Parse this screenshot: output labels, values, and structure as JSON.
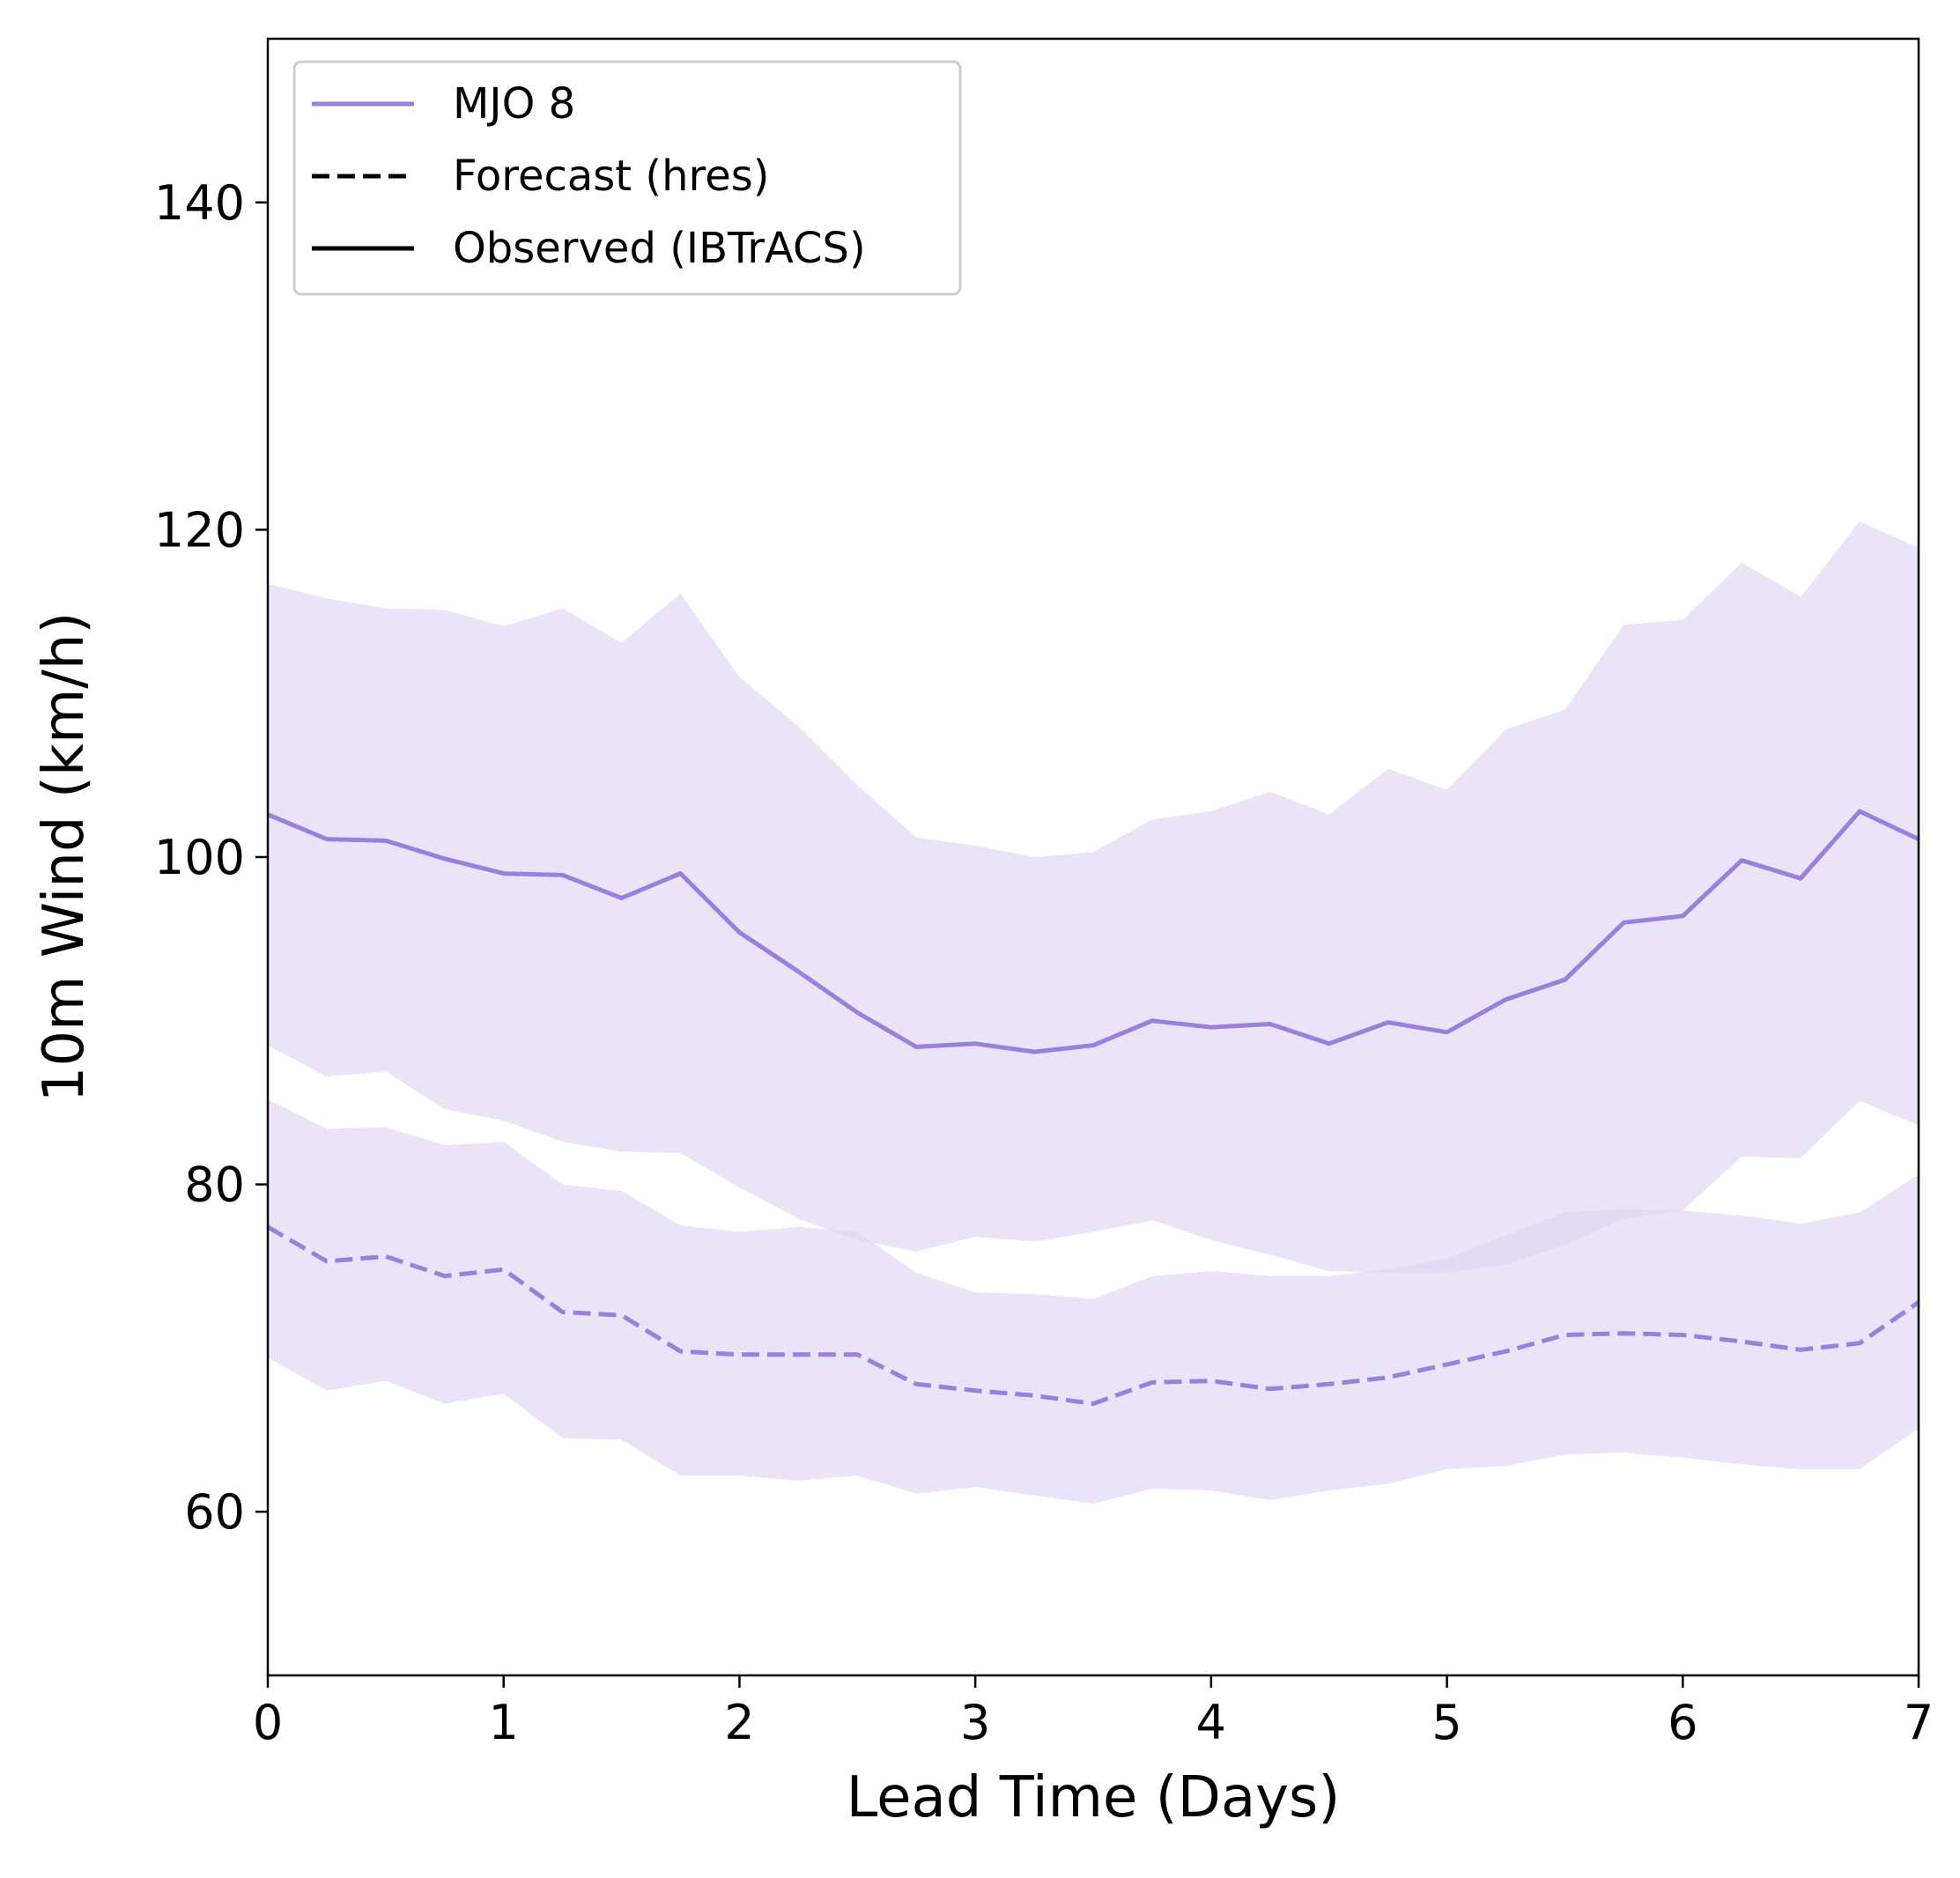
{
  "chart_data": {
    "type": "line",
    "xlabel": "Lead Time (Days)",
    "ylabel": "10m Wind (km/h)",
    "xlim": [
      0,
      7
    ],
    "ylim": [
      50,
      150
    ],
    "xticks": [
      0,
      1,
      2,
      3,
      4,
      5,
      6,
      7
    ],
    "yticks": [
      60,
      80,
      100,
      120,
      140
    ],
    "grid": false,
    "legend_position": "upper-left",
    "legend": [
      {
        "label": "MJO 8",
        "style": "solid",
        "color": "#9b7fdc"
      },
      {
        "label": "Forecast (hres)",
        "style": "dashed",
        "color": "#000000"
      },
      {
        "label": "Observed (IBTrACS)",
        "style": "solid",
        "color": "#000000"
      }
    ],
    "band_color": "#ded4f3",
    "x": [
      0,
      0.25,
      0.5,
      0.75,
      1,
      1.25,
      1.5,
      1.75,
      2,
      2.25,
      2.5,
      2.75,
      3,
      3.25,
      3.5,
      3.75,
      4,
      4.25,
      4.5,
      4.75,
      5,
      5.25,
      5.5,
      5.75,
      6,
      6.25,
      6.5,
      6.75,
      7
    ],
    "series": [
      {
        "name": "MJO 8",
        "kind": "Observed (IBTrACS)",
        "style": "solid",
        "color": "#9b7fdc",
        "values": [
          102.6,
          101.1,
          101.0,
          99.9,
          99.0,
          98.9,
          97.5,
          99.0,
          95.4,
          93.0,
          90.5,
          88.4,
          88.6,
          88.1,
          88.5,
          90.0,
          89.6,
          89.8,
          88.6,
          89.9,
          89.3,
          91.3,
          92.5,
          96.0,
          96.4,
          99.8,
          98.7,
          102.8,
          101.1
        ],
        "band_upper": [
          116.7,
          115.8,
          115.2,
          115.1,
          114.1,
          115.2,
          113.1,
          116.1,
          111.0,
          108.0,
          104.4,
          101.2,
          100.7,
          100.0,
          100.3,
          102.3,
          102.8,
          104.0,
          102.6,
          105.4,
          104.1,
          107.8,
          109.0,
          114.2,
          114.5,
          118.0,
          115.9,
          120.5,
          118.9
        ],
        "band_lower": [
          88.5,
          86.6,
          86.9,
          84.6,
          83.9,
          82.6,
          82.0,
          81.9,
          79.8,
          77.9,
          76.6,
          75.9,
          76.8,
          76.5,
          77.1,
          77.8,
          76.6,
          75.7,
          74.7,
          74.6,
          74.6,
          75.1,
          76.3,
          77.9,
          78.4,
          81.7,
          81.6,
          85.1,
          83.6
        ]
      },
      {
        "name": "MJO 8",
        "kind": "Forecast (hres)",
        "style": "dashed",
        "color": "#9b7fdc",
        "values": [
          77.4,
          75.3,
          75.6,
          74.4,
          74.8,
          72.2,
          72.0,
          69.8,
          69.6,
          69.6,
          69.6,
          67.8,
          67.4,
          67.1,
          66.6,
          67.9,
          68.0,
          67.5,
          67.8,
          68.2,
          69.0,
          69.8,
          70.8,
          70.9,
          70.8,
          70.4,
          69.9,
          70.3,
          72.8
        ],
        "band_upper": [
          85.2,
          83.4,
          83.5,
          82.4,
          82.6,
          80.0,
          79.6,
          77.5,
          77.1,
          77.4,
          77.1,
          74.6,
          73.4,
          73.3,
          73.0,
          74.4,
          74.7,
          74.4,
          74.4,
          74.8,
          75.5,
          76.9,
          78.3,
          78.5,
          78.4,
          78.1,
          77.6,
          78.3,
          80.6
        ],
        "band_lower": [
          69.4,
          67.4,
          68.0,
          66.6,
          67.2,
          64.5,
          64.4,
          62.2,
          62.2,
          61.9,
          62.2,
          61.1,
          61.5,
          61.0,
          60.5,
          61.4,
          61.3,
          60.7,
          61.3,
          61.7,
          62.6,
          62.8,
          63.5,
          63.6,
          63.3,
          62.9,
          62.6,
          62.6,
          65.1
        ]
      }
    ]
  }
}
